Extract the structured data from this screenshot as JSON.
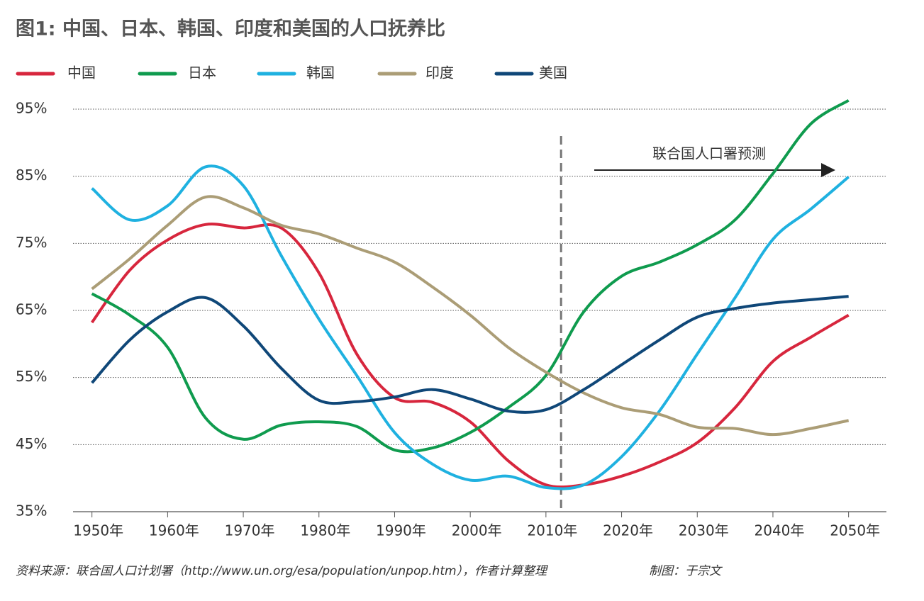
{
  "chart_data": {
    "type": "line",
    "title": "图1: 中国、日本、韩国、印度和美国的人口抚养比",
    "x": [
      1950,
      1955,
      1960,
      1965,
      1970,
      1975,
      1980,
      1985,
      1990,
      1995,
      2000,
      2005,
      2010,
      2015,
      2020,
      2025,
      2030,
      2035,
      2040,
      2045,
      2050
    ],
    "series": [
      {
        "name": "中国",
        "color": "#d7263d",
        "values": [
          63.2,
          71,
          75.5,
          77.8,
          77.3,
          77.3,
          70.6,
          58.5,
          52,
          51.3,
          48.4,
          42.6,
          39,
          39,
          40.3,
          42.4,
          45.3,
          50.5,
          57.4,
          61,
          64.3
        ]
      },
      {
        "name": "日本",
        "color": "#0f9b4e",
        "values": [
          67.5,
          64.3,
          59.5,
          49,
          45.8,
          47.9,
          48.4,
          47.7,
          44.2,
          44.5,
          46.8,
          50.5,
          55.3,
          64.8,
          70.1,
          72.2,
          74.8,
          78.5,
          85.4,
          92.8,
          96.3
        ]
      },
      {
        "name": "韩国",
        "color": "#1fb1e0",
        "values": [
          83.2,
          78.5,
          80.6,
          86.4,
          83.6,
          73.2,
          63.7,
          55.3,
          46.8,
          42.1,
          39.7,
          40.3,
          38.6,
          39,
          43.2,
          50,
          58.5,
          66.9,
          75.6,
          80.1,
          84.9
        ]
      },
      {
        "name": "印度",
        "color": "#ab9d76",
        "values": [
          68.2,
          72.7,
          77.7,
          81.9,
          80.3,
          77.7,
          76.4,
          74.3,
          72.2,
          68.5,
          64.3,
          59.5,
          55.8,
          52.7,
          50.5,
          49.5,
          47.6,
          47.4,
          46.5,
          47.4,
          48.6
        ]
      },
      {
        "name": "美国",
        "color": "#0f4778",
        "values": [
          54.2,
          60.6,
          64.8,
          66.9,
          62.7,
          56.4,
          51.6,
          51.4,
          52.1,
          53.2,
          51.8,
          50,
          50.2,
          53.2,
          56.9,
          60.6,
          64,
          65.3,
          66.1,
          66.6,
          67.1
        ]
      }
    ],
    "xlim": [
      1947.5,
      2055
    ],
    "xticks": [
      {
        "value": 1950,
        "label": "1950年"
      },
      {
        "value": 1960,
        "label": "1960年"
      },
      {
        "value": 1970,
        "label": "1970年"
      },
      {
        "value": 1980,
        "label": "1980年"
      },
      {
        "value": 1990,
        "label": "1990年"
      },
      {
        "value": 2000,
        "label": "2000年"
      },
      {
        "value": 2010,
        "label": "2010年"
      },
      {
        "value": 2020,
        "label": "2020年"
      },
      {
        "value": 2030,
        "label": "2030年"
      },
      {
        "value": 2040,
        "label": "2040年"
      },
      {
        "value": 2050,
        "label": "2050年"
      }
    ],
    "ylim": [
      35,
      95
    ],
    "yticks": [
      {
        "value": 35,
        "label": "35%"
      },
      {
        "value": 45,
        "label": "45%"
      },
      {
        "value": 55,
        "label": "55%"
      },
      {
        "value": 65,
        "label": "65%"
      },
      {
        "value": 75,
        "label": "75%"
      },
      {
        "value": 85,
        "label": "85%"
      },
      {
        "value": 95,
        "label": "95%"
      }
    ],
    "grid": true,
    "legend": "top",
    "projection_start": 2012,
    "annotation": "联合国人口署预测",
    "source": "资料来源：联合国人口计划署（http://www.un.org/esa/population/unpop.htm），作者计算整理",
    "credit": "制图：于宗文"
  }
}
